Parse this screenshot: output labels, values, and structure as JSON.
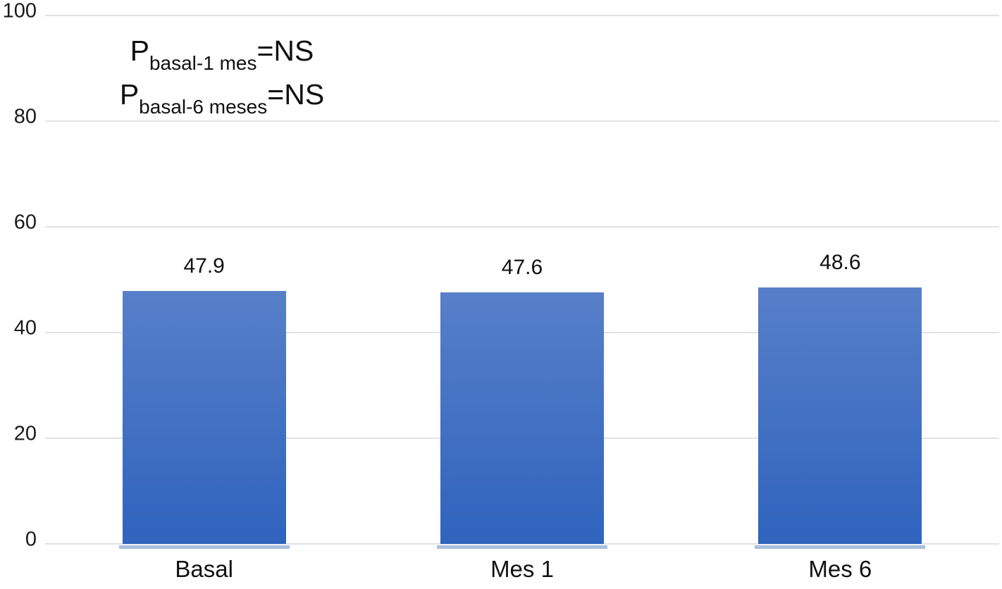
{
  "chart_data": {
    "type": "bar",
    "categories": [
      "Basal",
      "Mes 1",
      "Mes 6"
    ],
    "values": [
      47.9,
      47.6,
      48.6
    ],
    "value_labels": [
      "47.9",
      "47.6",
      "48.6"
    ],
    "title": "",
    "xlabel": "",
    "ylabel": "",
    "ylim": [
      0,
      100
    ],
    "yticks": [
      0,
      20,
      40,
      60,
      80,
      100
    ],
    "grid": true,
    "legend": false,
    "annotations": [
      {
        "base": "P",
        "subscript": "basal-1 mes",
        "rest": "=NS"
      },
      {
        "base": "P",
        "subscript": "basal-6 meses",
        "rest": "=NS"
      }
    ],
    "colors": {
      "background": "#ffffff",
      "bar_top": "#587fc9",
      "bar_bottom": "#2f63bd",
      "bar_base_stripe": "#a9bedf",
      "gridline": "#e2e2e6",
      "text": "#1a1a1a"
    }
  }
}
